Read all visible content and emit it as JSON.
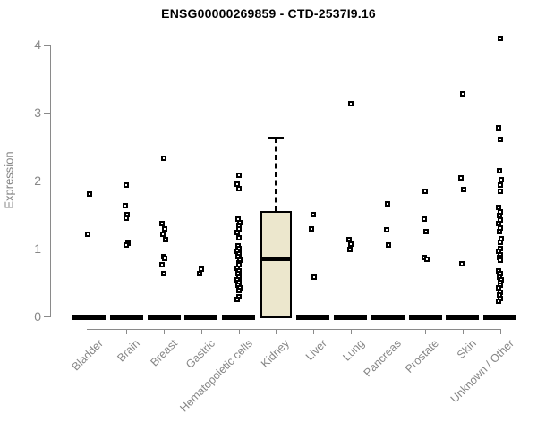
{
  "chart_data": {
    "type": "scatter",
    "subtype": "strip-plot-with-box",
    "title": "ENSG00000269859 - CTD-2537I9.16",
    "ylabel": "Expression",
    "xlabel": "",
    "ylim": [
      0,
      4.15
    ],
    "yticks": [
      0,
      1,
      2,
      3,
      4
    ],
    "grid": "off",
    "legend": "none",
    "categories": [
      "Bladder",
      "Brain",
      "Breast",
      "Gastric",
      "Hematopoietic cells",
      "Kidney",
      "Liver",
      "Lung",
      "Pancreas",
      "Prostate",
      "Skin",
      "Unknown / Other"
    ],
    "series": [
      {
        "category": "Bladder",
        "zero_mass": true,
        "points": [
          1.81,
          1.21
        ]
      },
      {
        "category": "Brain",
        "zero_mass": true,
        "points": [
          1.94,
          1.64,
          1.5,
          1.45,
          1.08,
          1.06
        ]
      },
      {
        "category": "Breast",
        "zero_mass": true,
        "points": [
          2.33,
          1.37,
          1.29,
          1.21,
          1.13,
          0.88,
          0.86,
          0.77,
          0.64
        ]
      },
      {
        "category": "Gastric",
        "zero_mass": true,
        "points": [
          0.7,
          0.64
        ]
      },
      {
        "category": "Hematopoietic cells",
        "zero_mass": true,
        "points": [
          2.08,
          1.95,
          1.88,
          1.44,
          1.39,
          1.34,
          1.29,
          1.24,
          1.16,
          1.04,
          1.0,
          0.96,
          0.92,
          0.88,
          0.84,
          0.8,
          0.77,
          0.71,
          0.67,
          0.63,
          0.59,
          0.55,
          0.51,
          0.47,
          0.43,
          0.39,
          0.3,
          0.25
        ]
      },
      {
        "category": "Kidney",
        "zero_mass": false,
        "points": [],
        "box": {
          "whisker_high": 2.64,
          "q3": 1.56,
          "median": 0.85,
          "q1": 0.0,
          "whisker_low": 0.0
        }
      },
      {
        "category": "Liver",
        "zero_mass": true,
        "points": [
          1.5,
          1.29,
          0.59
        ]
      },
      {
        "category": "Lung",
        "zero_mass": true,
        "points": [
          3.14,
          1.13,
          1.07,
          0.99
        ]
      },
      {
        "category": "Pancreas",
        "zero_mass": true,
        "points": [
          1.66,
          1.28,
          1.06
        ]
      },
      {
        "category": "Prostate",
        "zero_mass": true,
        "points": [
          1.85,
          1.44,
          1.25,
          0.87,
          0.85
        ]
      },
      {
        "category": "Skin",
        "zero_mass": true,
        "points": [
          3.28,
          2.05,
          1.87,
          0.78
        ]
      },
      {
        "category": "Unknown / Other",
        "zero_mass": true,
        "points": [
          4.1,
          2.78,
          2.61,
          2.15,
          2.02,
          1.94,
          1.85,
          1.61,
          1.55,
          1.49,
          1.43,
          1.37,
          1.31,
          1.25,
          1.15,
          1.1,
          1.0,
          0.96,
          0.91,
          0.87,
          0.83,
          0.67,
          0.63,
          0.59,
          0.55,
          0.51,
          0.47,
          0.42,
          0.36,
          0.32,
          0.27,
          0.23
        ]
      }
    ],
    "colors": {
      "axis": "#8a8a8a",
      "tick_text": "#868686",
      "title_text": "#000000",
      "marker_border": "#000000",
      "marker_fill": "#ffffff",
      "zero_bar": "#000000",
      "box_fill": "#ece7cd",
      "box_border": "#000000"
    }
  }
}
